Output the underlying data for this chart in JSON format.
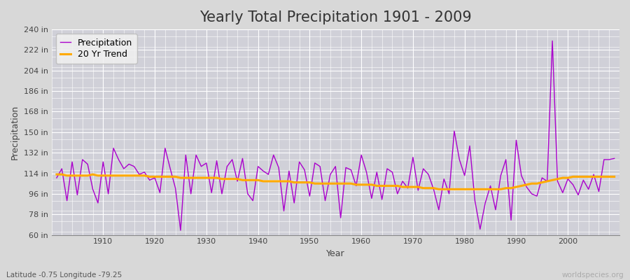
{
  "title": "Yearly Total Precipitation 1901 - 2009",
  "xlabel": "Year",
  "ylabel": "Precipitation",
  "bottom_left_label": "Latitude -0.75 Longitude -79.25",
  "bottom_right_label": "worldspecies.org",
  "years": [
    1901,
    1902,
    1903,
    1904,
    1905,
    1906,
    1907,
    1908,
    1909,
    1910,
    1911,
    1912,
    1913,
    1914,
    1915,
    1916,
    1917,
    1918,
    1919,
    1920,
    1921,
    1922,
    1923,
    1924,
    1925,
    1926,
    1927,
    1928,
    1929,
    1930,
    1931,
    1932,
    1933,
    1934,
    1935,
    1936,
    1937,
    1938,
    1939,
    1940,
    1941,
    1942,
    1943,
    1944,
    1945,
    1946,
    1947,
    1948,
    1949,
    1950,
    1951,
    1952,
    1953,
    1954,
    1955,
    1956,
    1957,
    1958,
    1959,
    1960,
    1961,
    1962,
    1963,
    1964,
    1965,
    1966,
    1967,
    1968,
    1969,
    1970,
    1971,
    1972,
    1973,
    1974,
    1975,
    1976,
    1977,
    1978,
    1979,
    1980,
    1981,
    1982,
    1983,
    1984,
    1985,
    1986,
    1987,
    1988,
    1989,
    1990,
    1991,
    1992,
    1993,
    1994,
    1995,
    1996,
    1997,
    1998,
    1999,
    2000,
    2001,
    2002,
    2003,
    2004,
    2005,
    2006,
    2007,
    2008,
    2009
  ],
  "precipitation": [
    110,
    118,
    90,
    124,
    95,
    126,
    122,
    100,
    88,
    124,
    96,
    136,
    126,
    118,
    122,
    120,
    113,
    115,
    108,
    110,
    97,
    136,
    118,
    101,
    64,
    130,
    96,
    130,
    120,
    123,
    97,
    125,
    96,
    120,
    126,
    107,
    127,
    96,
    90,
    120,
    116,
    113,
    130,
    119,
    81,
    116,
    88,
    124,
    117,
    94,
    123,
    120,
    90,
    113,
    120,
    75,
    119,
    117,
    103,
    130,
    115,
    92,
    115,
    91,
    118,
    115,
    96,
    107,
    101,
    128,
    99,
    118,
    113,
    100,
    82,
    109,
    96,
    151,
    126,
    112,
    138,
    90,
    65,
    88,
    103,
    82,
    112,
    126,
    73,
    143,
    112,
    102,
    96,
    94,
    110,
    107,
    230,
    107,
    97,
    109,
    104,
    95,
    108,
    100,
    113,
    98,
    126,
    126,
    127
  ],
  "trend": [
    113,
    113,
    112,
    112,
    112,
    112,
    112,
    113,
    112,
    112,
    112,
    112,
    112,
    112,
    112,
    112,
    112,
    112,
    111,
    111,
    111,
    111,
    111,
    111,
    110,
    110,
    110,
    110,
    110,
    110,
    110,
    110,
    109,
    109,
    109,
    109,
    108,
    108,
    108,
    108,
    107,
    107,
    107,
    107,
    107,
    107,
    106,
    106,
    106,
    106,
    105,
    105,
    105,
    105,
    105,
    105,
    105,
    105,
    104,
    104,
    104,
    104,
    103,
    103,
    103,
    103,
    103,
    102,
    102,
    102,
    102,
    101,
    101,
    101,
    100,
    100,
    100,
    100,
    100,
    100,
    100,
    100,
    100,
    100,
    100,
    100,
    100,
    101,
    101,
    102,
    103,
    104,
    105,
    105,
    106,
    107,
    108,
    109,
    110,
    110,
    111,
    111,
    111,
    111,
    111,
    111,
    111,
    111,
    111
  ],
  "precip_color": "#aa00cc",
  "trend_color": "#ffaa00",
  "bg_color": "#d8d8d8",
  "plot_bg_color": "#d0d0d8",
  "grid_color": "#ffffff",
  "ylim": [
    60,
    240
  ],
  "yticks": [
    60,
    78,
    96,
    114,
    132,
    150,
    168,
    186,
    204,
    222,
    240
  ],
  "ytick_labels": [
    "60 in",
    "78 in",
    "96 in",
    "114 in",
    "132 in",
    "150 in",
    "168 in",
    "186 in",
    "204 in",
    "222 in",
    "240 in"
  ],
  "xticks": [
    1910,
    1920,
    1930,
    1940,
    1950,
    1960,
    1970,
    1980,
    1990,
    2000
  ],
  "title_fontsize": 15,
  "axis_label_fontsize": 9,
  "tick_fontsize": 8,
  "legend_fontsize": 9
}
